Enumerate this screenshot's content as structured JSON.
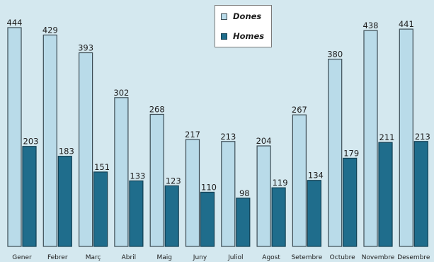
{
  "chart_data": {
    "type": "bar",
    "categories": [
      "Gener",
      "Febrer",
      "Març",
      "Abril",
      "Maig",
      "Juny",
      "Juliol",
      "Agost",
      "Setembre",
      "Octubre",
      "Novembre",
      "Desembre"
    ],
    "series": [
      {
        "name": "Dones",
        "values": [
          444,
          429,
          393,
          302,
          268,
          217,
          213,
          204,
          267,
          380,
          438,
          441
        ],
        "color": "#b9dbe9"
      },
      {
        "name": "Homes",
        "values": [
          203,
          183,
          151,
          133,
          123,
          110,
          98,
          119,
          134,
          179,
          211,
          213
        ],
        "color": "#1f6d8c"
      }
    ],
    "ylim": [
      0,
      470
    ],
    "grid": false,
    "legend": "top-center",
    "data_labels": true
  }
}
